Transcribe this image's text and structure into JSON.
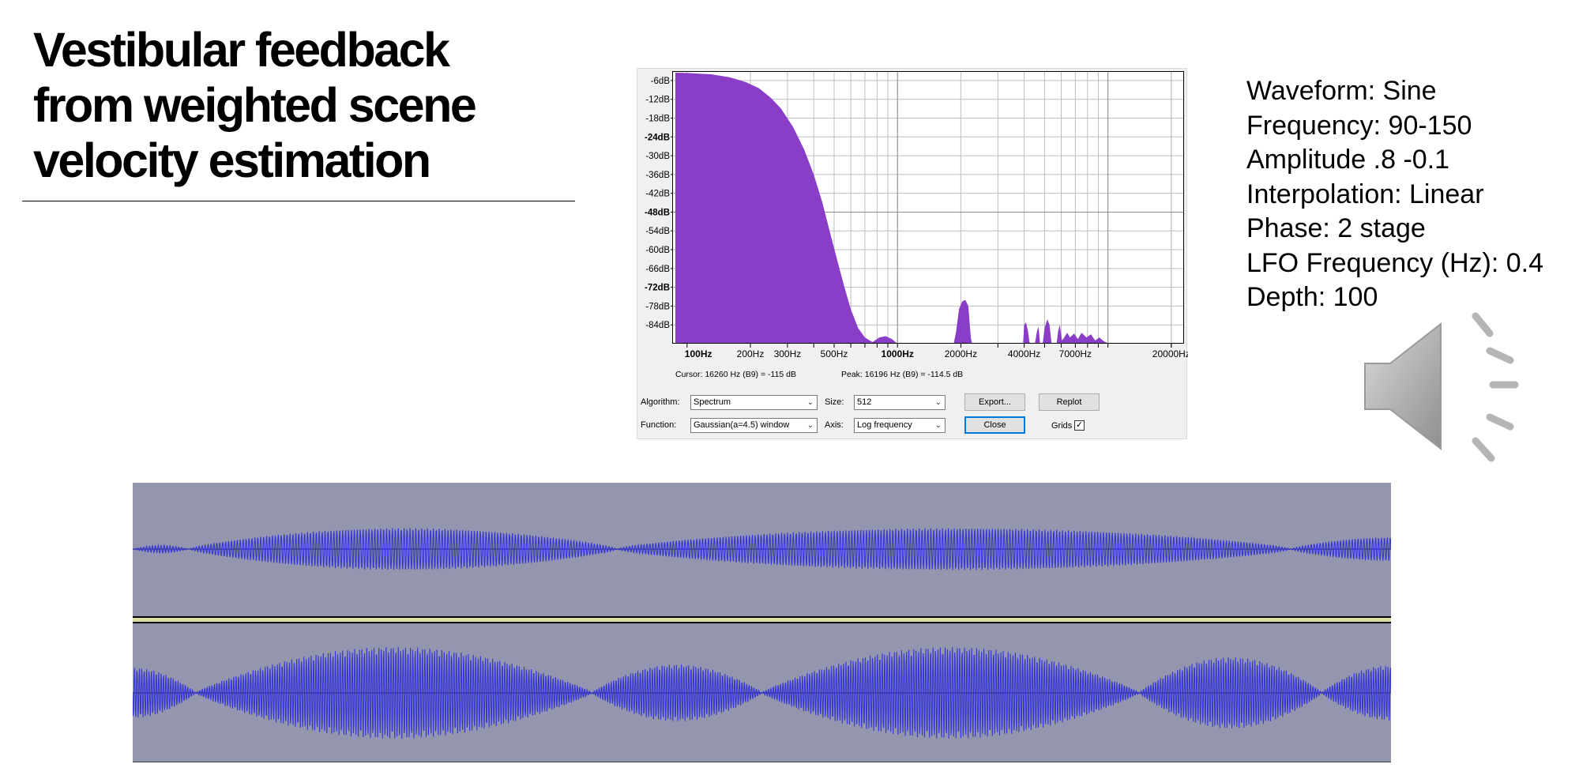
{
  "slide": {
    "title_lines": [
      "Vestibular feedback",
      "from weighted scene",
      "velocity estimation"
    ],
    "params": [
      "Waveform: Sine",
      "Frequency: 90-150",
      "Amplitude .8 -0.1",
      "Interpolation: Linear",
      "Phase: 2 stage",
      "LFO Frequency (Hz): 0.4",
      "Depth: 100"
    ],
    "speaker_icon": "speaker-volume-icon"
  },
  "spectrum": {
    "fill_color": "#8a3ec8",
    "y_axis": {
      "labels": [
        "-6dB",
        "-12dB",
        "-18dB",
        "-24dB",
        "-30dB",
        "-36dB",
        "-42dB",
        "-48dB",
        "-54dB",
        "-60dB",
        "-66dB",
        "-72dB",
        "-78dB",
        "-84dB"
      ],
      "bold_labels": [
        "-24dB",
        "-48dB",
        "-72dB"
      ],
      "range_db": [
        -3,
        -90
      ]
    },
    "x_axis": {
      "labels": [
        {
          "text": "100Hz",
          "hz": 100,
          "bold": true
        },
        {
          "text": "200Hz",
          "hz": 200,
          "bold": false
        },
        {
          "text": "300Hz",
          "hz": 300,
          "bold": false
        },
        {
          "text": "500Hz",
          "hz": 500,
          "bold": false
        },
        {
          "text": "1000Hz",
          "hz": 1000,
          "bold": true
        },
        {
          "text": "2000Hz",
          "hz": 2000,
          "bold": false
        },
        {
          "text": "4000Hz",
          "hz": 4000,
          "bold": false
        },
        {
          "text": "7000Hz",
          "hz": 7000,
          "bold": false
        },
        {
          "text": "20000Hz",
          "hz": 20000,
          "bold": false
        }
      ],
      "scale": "log",
      "range_hz": [
        85,
        23000
      ]
    },
    "cursor_text": "Cursor: 16260 Hz (B9) = -115 dB",
    "peak_text": "Peak: 16196 Hz (B9) = -114.5 dB",
    "algorithm_label": "Algorithm:",
    "algorithm_value": "Spectrum",
    "function_label": "Function:",
    "function_value": "Gaussian(a=4.5) window",
    "size_label": "Size:",
    "size_value": "512",
    "axis_label": "Axis:",
    "axis_value": "Log frequency",
    "export_label": "Export...",
    "replot_label": "Replot",
    "close_label": "Close",
    "grids_label": "Grids",
    "grids_checked": true
  },
  "waveform": {
    "background": "#9396ae",
    "wave_color": "#3535d6",
    "separator_color": "#dcdc9e"
  }
}
